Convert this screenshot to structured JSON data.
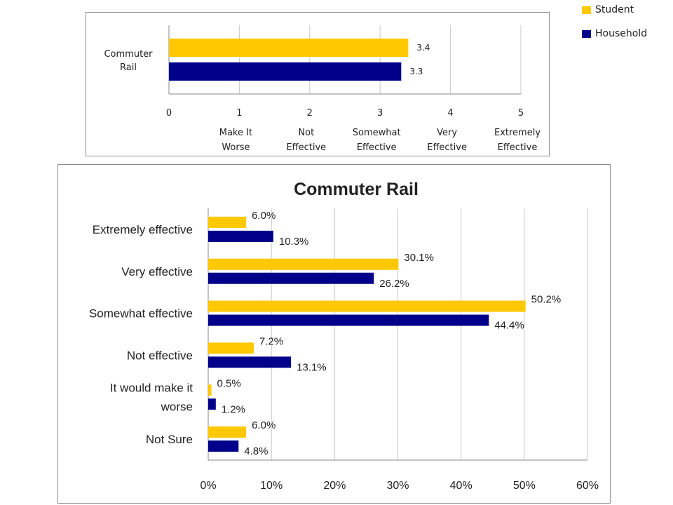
{
  "colors": {
    "student": "#FFC800",
    "household": "#00008B",
    "grid": "#C8C8C8",
    "axis": "#8A8A8A",
    "text": "#222222"
  },
  "legend": {
    "student": "Student",
    "household": "Household"
  },
  "chart_data": [
    {
      "type": "bar",
      "orientation": "horizontal",
      "categories": [
        "Commuter\nRail"
      ],
      "series": [
        {
          "name": "Student",
          "values": [
            3.4
          ],
          "labels": [
            "3.4"
          ]
        },
        {
          "name": "Household",
          "values": [
            3.3
          ],
          "labels": [
            "3.3"
          ]
        }
      ],
      "xlim": [
        0,
        5
      ],
      "xticks": [
        "0",
        "1",
        "2",
        "3",
        "4",
        "5"
      ],
      "xtick_sublabels": [
        "",
        "Make It\nWorse",
        "Not\nEffective",
        "Somewhat\nEffective",
        "Very\nEffective",
        "Extremely\nEffective"
      ],
      "grid": true,
      "legend": "top-right, outside"
    },
    {
      "type": "bar",
      "orientation": "horizontal",
      "title": "Commuter Rail",
      "categories": [
        "Extremely effective",
        "Very effective",
        "Somewhat effective",
        "Not effective",
        "It would make it\nworse",
        "Not Sure"
      ],
      "series": [
        {
          "name": "Student",
          "values": [
            6.0,
            30.1,
            50.2,
            7.2,
            0.5,
            6.0
          ],
          "labels": [
            "6.0%",
            "30.1%",
            "50.2%",
            "7.2%",
            "0.5%",
            "6.0%"
          ]
        },
        {
          "name": "Household",
          "values": [
            10.3,
            26.2,
            44.4,
            13.1,
            1.2,
            4.8
          ],
          "labels": [
            "10.3%",
            "26.2%",
            "44.4%",
            "13.1%",
            "1.2%",
            "4.8%"
          ]
        }
      ],
      "xlim": [
        0,
        60
      ],
      "xticks": [
        "0%",
        "10%",
        "20%",
        "30%",
        "40%",
        "50%",
        "60%"
      ],
      "grid": true
    }
  ]
}
